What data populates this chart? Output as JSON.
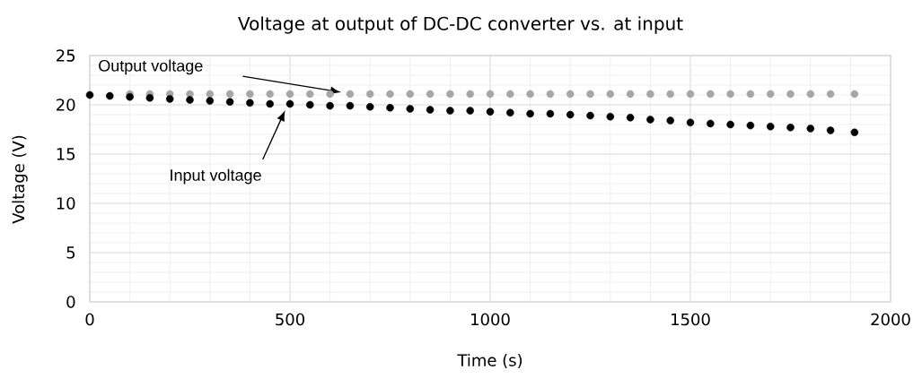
{
  "chart_data": {
    "type": "scatter",
    "title": "Voltage at output of DC-DC converter vs. at input",
    "xlabel": "Time (s)",
    "ylabel": "Voltage (V)",
    "xlim": [
      0,
      2000
    ],
    "xticks": [
      0,
      500,
      1000,
      1500,
      2000
    ],
    "ylim": [
      0,
      25
    ],
    "yticks": [
      0,
      5,
      10,
      15,
      20,
      25
    ],
    "grid": true,
    "marker": "circle",
    "annotations": [
      "Output voltage",
      "Input voltage"
    ],
    "series": [
      {
        "color": "#a6a6a6",
        "x": [
          100,
          150,
          200,
          250,
          300,
          350,
          400,
          450,
          500,
          550,
          600,
          650,
          700,
          750,
          800,
          850,
          900,
          950,
          1000,
          1050,
          1100,
          1150,
          1200,
          1250,
          1300,
          1350,
          1400,
          1450,
          1500,
          1550,
          1600,
          1650,
          1700,
          1750,
          1800,
          1850,
          1910
        ],
        "values": [
          21.1,
          21.1,
          21.1,
          21.1,
          21.1,
          21.1,
          21.1,
          21.1,
          21.1,
          21.1,
          21.1,
          21.1,
          21.1,
          21.1,
          21.1,
          21.1,
          21.1,
          21.1,
          21.1,
          21.1,
          21.1,
          21.1,
          21.1,
          21.1,
          21.1,
          21.1,
          21.1,
          21.1,
          21.1,
          21.1,
          21.1,
          21.1,
          21.1,
          21.1,
          21.1,
          21.1,
          21.1
        ]
      },
      {
        "color": "#000000",
        "x": [
          0,
          50,
          100,
          150,
          200,
          250,
          300,
          350,
          400,
          450,
          500,
          550,
          600,
          650,
          700,
          750,
          800,
          850,
          900,
          950,
          1000,
          1050,
          1100,
          1150,
          1200,
          1250,
          1300,
          1350,
          1400,
          1450,
          1500,
          1550,
          1600,
          1650,
          1700,
          1750,
          1800,
          1850,
          1910
        ],
        "values": [
          21.0,
          20.9,
          20.8,
          20.7,
          20.6,
          20.5,
          20.4,
          20.3,
          20.2,
          20.1,
          20.1,
          20.0,
          19.9,
          19.9,
          19.8,
          19.7,
          19.6,
          19.5,
          19.4,
          19.4,
          19.3,
          19.2,
          19.1,
          19.1,
          19.0,
          18.9,
          18.8,
          18.7,
          18.5,
          18.4,
          18.2,
          18.1,
          18.0,
          17.9,
          17.8,
          17.7,
          17.6,
          17.4,
          17.2
        ]
      }
    ]
  }
}
